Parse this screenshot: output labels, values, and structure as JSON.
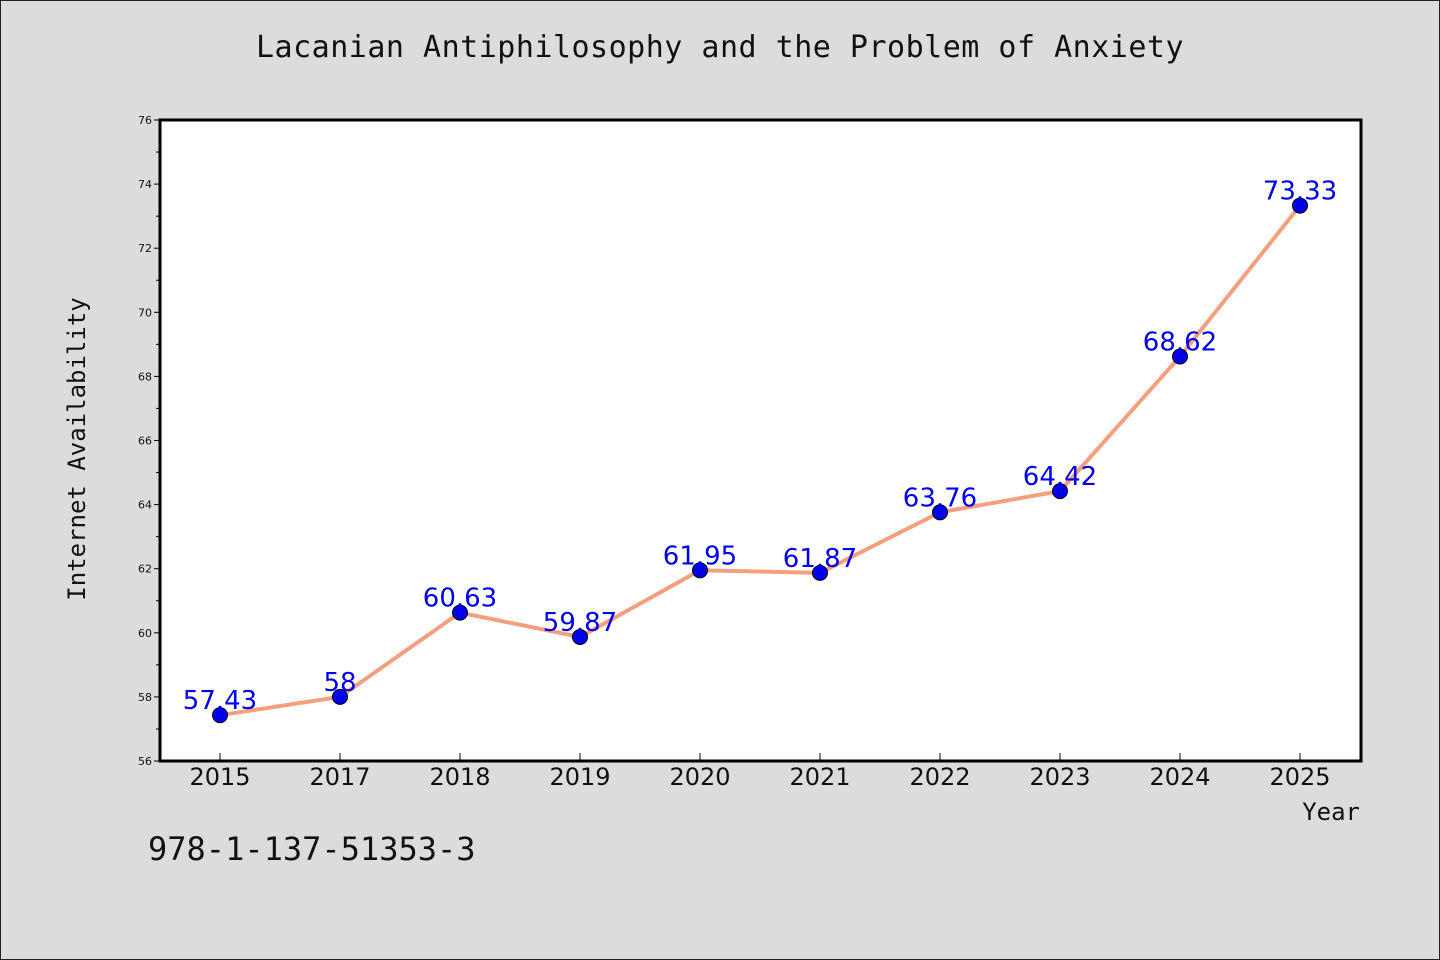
{
  "chart_data": {
    "type": "line",
    "title": "Lacanian Antiphilosophy and the Problem of Anxiety",
    "xlabel": "Year",
    "ylabel": "Internet Availability",
    "categories": [
      "2015",
      "2017",
      "2018",
      "2019",
      "2020",
      "2021",
      "2022",
      "2023",
      "2024",
      "2025"
    ],
    "series": [
      {
        "values": [
          57.43,
          58,
          60.63,
          59.87,
          61.95,
          61.87,
          63.76,
          64.42,
          68.62,
          73.33
        ],
        "labels": [
          "57.43",
          "58",
          "60.63",
          "59.87",
          "61.95",
          "61.87",
          "63.76",
          "64.42",
          "68.62",
          "73.33"
        ],
        "line_color": "#f4a07e",
        "marker_color": "#0000ee"
      }
    ],
    "ylim": [
      56,
      76
    ],
    "yticks": [
      "56",
      "58",
      "60",
      "62",
      "64",
      "66",
      "68",
      "70",
      "72",
      "74",
      "76"
    ],
    "grid": false,
    "legend": "none",
    "background": "#dcdcdc",
    "plot_background": "#ffffff"
  },
  "footer": {
    "isbn": "978-1-137-51353-3"
  }
}
